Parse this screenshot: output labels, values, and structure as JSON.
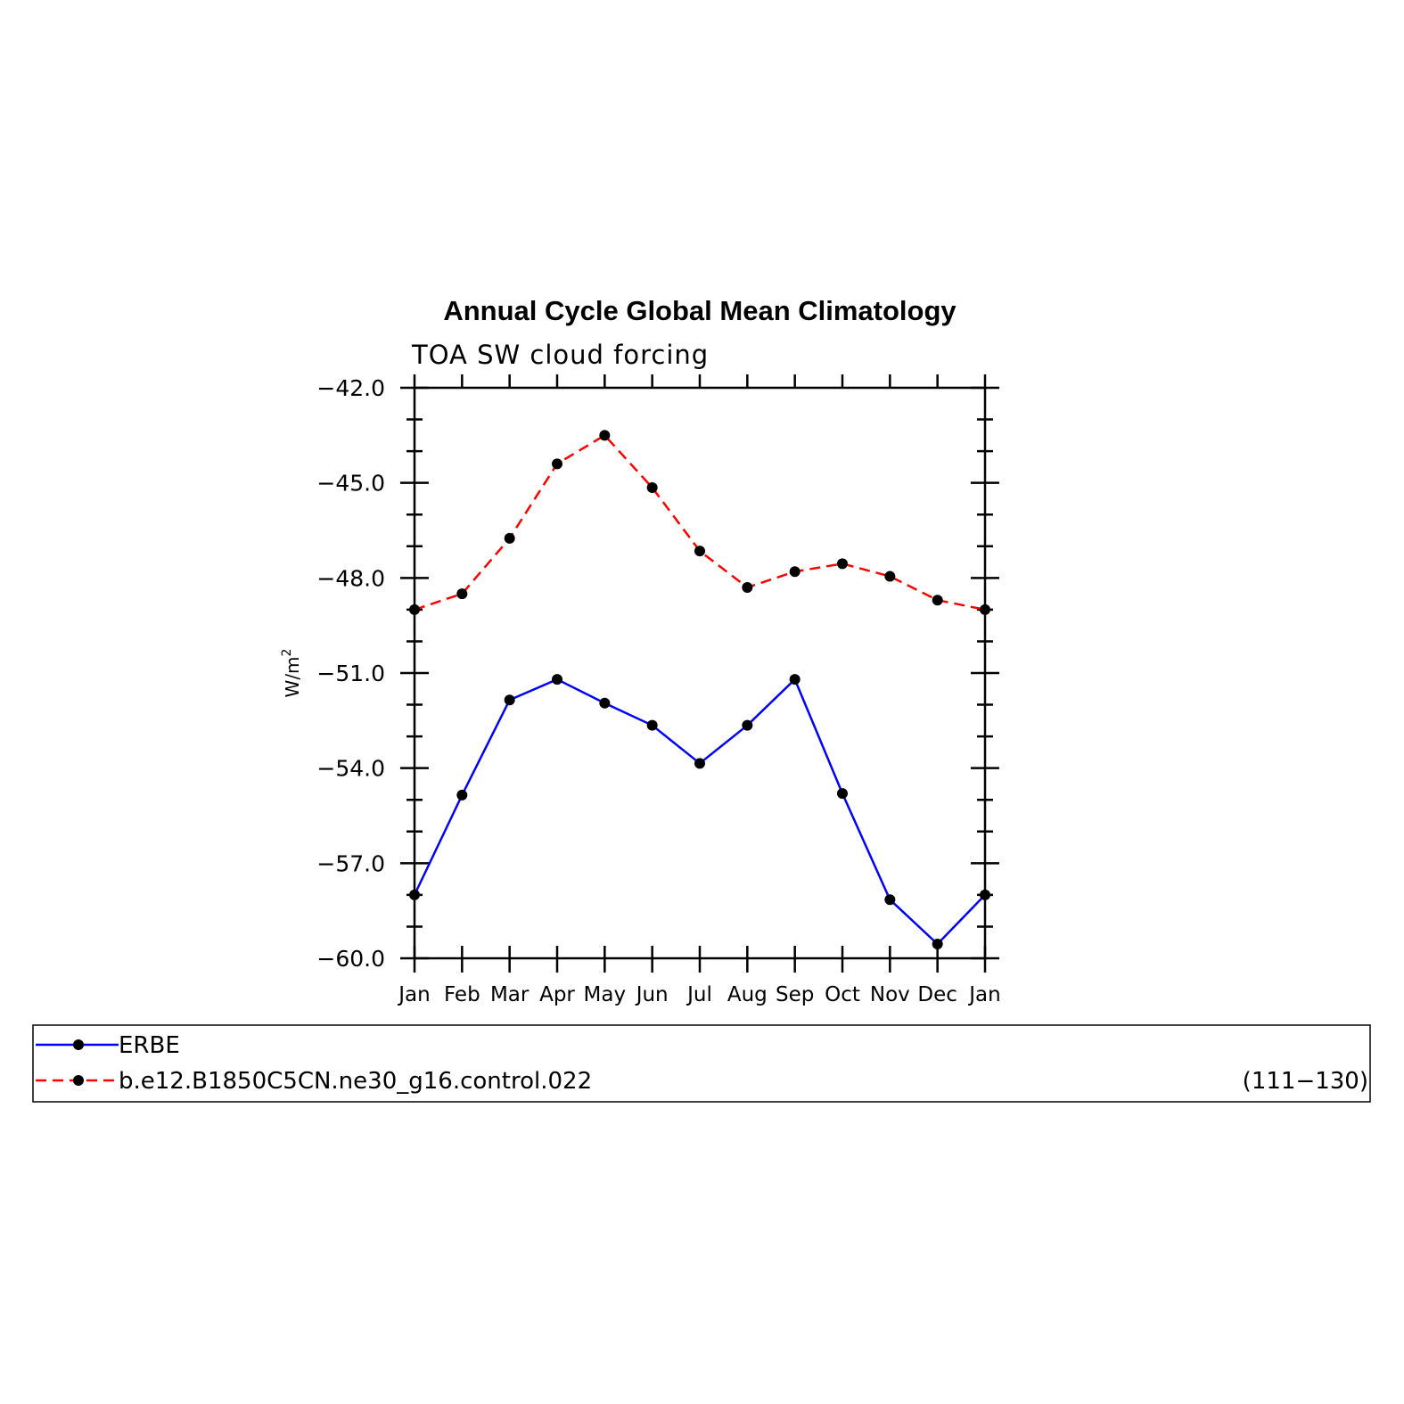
{
  "chart_data": {
    "type": "line",
    "title": "Annual Cycle Global Mean Climatology",
    "subtitle": "TOA SW cloud forcing",
    "xlabel": "",
    "ylabel": "W/m",
    "ylabel_superscript": "2",
    "categories": [
      "Jan",
      "Feb",
      "Mar",
      "Apr",
      "May",
      "Jun",
      "Jul",
      "Aug",
      "Sep",
      "Oct",
      "Nov",
      "Dec",
      "Jan"
    ],
    "ylim": [
      -60.0,
      -42.0
    ],
    "yticks": [
      -60.0,
      -57.0,
      -54.0,
      -51.0,
      -48.0,
      -45.0,
      -42.0
    ],
    "ytick_labels": [
      "−60.0",
      "−57.0",
      "−54.0",
      "−51.0",
      "−48.0",
      "−45.0",
      "−42.0"
    ],
    "grid": false,
    "legend_position": "bottom",
    "series": [
      {
        "name": "ERBE",
        "color": "#0000ff",
        "line_style": "solid",
        "marker": "filled-circle",
        "values": [
          -58.0,
          -54.85,
          -51.85,
          -51.2,
          -51.95,
          -52.65,
          -53.85,
          -52.65,
          -51.2,
          -54.8,
          -58.15,
          -59.55,
          -58.0
        ]
      },
      {
        "name": "b.e12.B1850C5CN.ne30_g16.control.022",
        "color": "#ff0000",
        "line_style": "dashed",
        "marker": "filled-circle",
        "values": [
          -49.0,
          -48.5,
          -46.75,
          -44.4,
          -43.5,
          -45.15,
          -47.15,
          -48.3,
          -47.8,
          -47.55,
          -47.95,
          -48.7,
          -49.0
        ]
      }
    ],
    "legend_note": "(111−130)"
  }
}
